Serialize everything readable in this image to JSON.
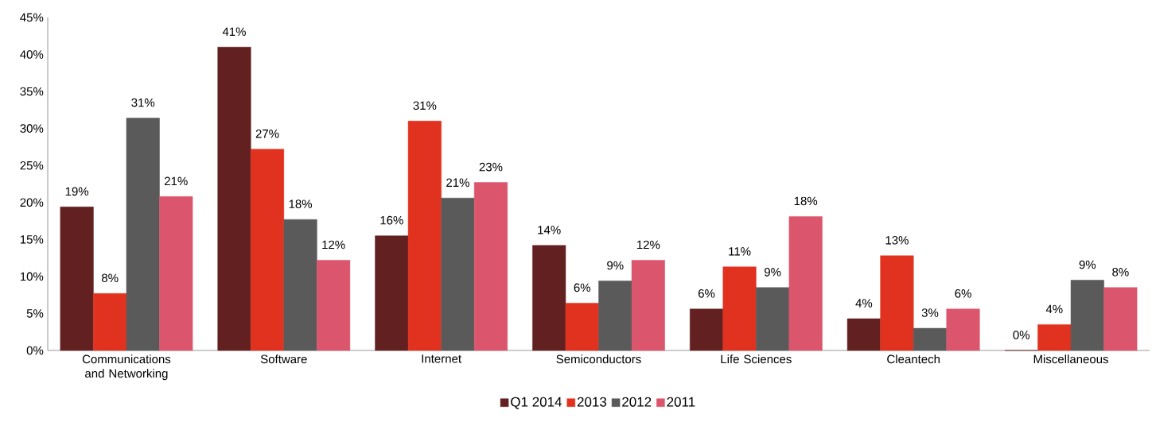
{
  "chart_data": {
    "type": "bar",
    "categories": [
      "Communications and Networking",
      "Software",
      "Internet",
      "Semiconductors",
      "Life Sciences",
      "Cleantech",
      "Miscellaneous"
    ],
    "series": [
      {
        "name": "Q1 2014",
        "color": "#622120",
        "values": [
          19.4,
          41.0,
          15.5,
          14.2,
          5.6,
          4.3,
          0
        ],
        "value_labels": [
          "19%",
          "41%",
          "16%",
          "14%",
          "6%",
          "4%",
          "0%"
        ]
      },
      {
        "name": "2013",
        "color": "#e0321f",
        "values": [
          7.7,
          27.2,
          31.0,
          6.4,
          11.3,
          12.8,
          3.5
        ],
        "value_labels": [
          "8%",
          "27%",
          "31%",
          "6%",
          "11%",
          "13%",
          "4%"
        ]
      },
      {
        "name": "2012",
        "color": "#5a5a5a",
        "values": [
          31.4,
          17.7,
          20.6,
          9.4,
          8.5,
          3.0,
          9.5
        ],
        "value_labels": [
          "31%",
          "18%",
          "21%",
          "9%",
          "9%",
          "3%",
          "9%"
        ]
      },
      {
        "name": "2011",
        "color": "#db566d",
        "values": [
          20.8,
          12.2,
          22.7,
          12.2,
          18.1,
          5.6,
          8.5
        ],
        "value_labels": [
          "21%",
          "12%",
          "23%",
          "12%",
          "18%",
          "6%",
          "8%"
        ]
      }
    ],
    "ylim": [
      0,
      45
    ],
    "yticks": [
      {
        "value": 0,
        "label": "0%"
      },
      {
        "value": 5,
        "label": "5%"
      },
      {
        "value": 10,
        "label": "10%"
      },
      {
        "value": 15,
        "label": "15%"
      },
      {
        "value": 20,
        "label": "20%"
      },
      {
        "value": 25,
        "label": "25%"
      },
      {
        "value": 30,
        "label": "30%"
      },
      {
        "value": 35,
        "label": "35%"
      },
      {
        "value": 40,
        "label": "40%"
      },
      {
        "value": 45,
        "label": "45%"
      }
    ],
    "legend": "bottom"
  }
}
